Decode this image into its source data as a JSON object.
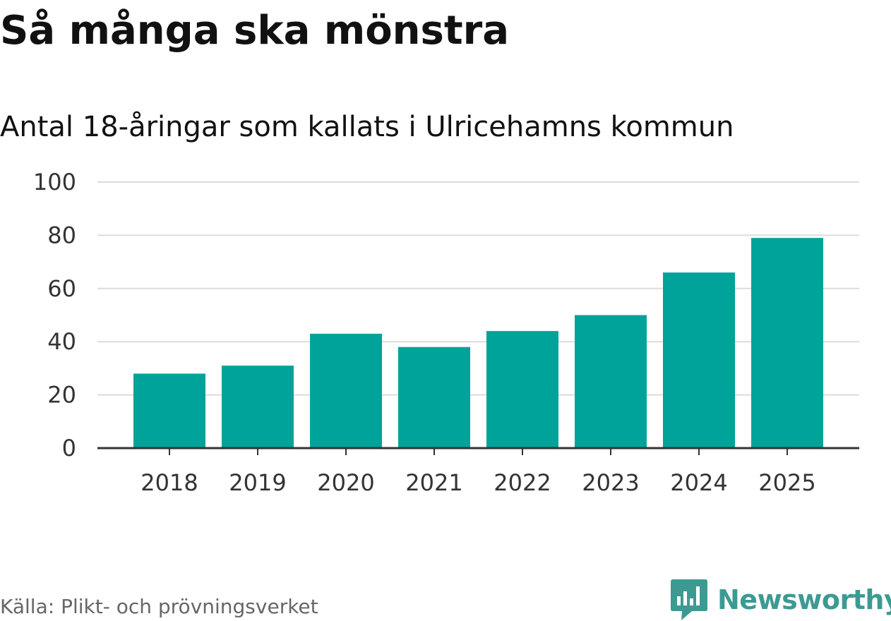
{
  "chart_data": {
    "type": "bar",
    "title": "Så många ska mönstra",
    "subtitle": "Antal 18-åringar som kallats i Ulricehamns kommun",
    "categories": [
      "2018",
      "2019",
      "2020",
      "2021",
      "2022",
      "2023",
      "2024",
      "2025"
    ],
    "values": [
      28,
      31,
      43,
      38,
      44,
      50,
      66,
      79
    ],
    "ylim": [
      0,
      100
    ],
    "yticks": [
      "0",
      "20",
      "40",
      "60",
      "80",
      "100"
    ],
    "xlabel": "",
    "ylabel": "",
    "grid": true,
    "bar_color": "#00a39a"
  },
  "footer": {
    "source": "Källa: Plikt- och prövningsverket",
    "brand": "Newsworthy",
    "brand_color": "#3d9a93"
  }
}
